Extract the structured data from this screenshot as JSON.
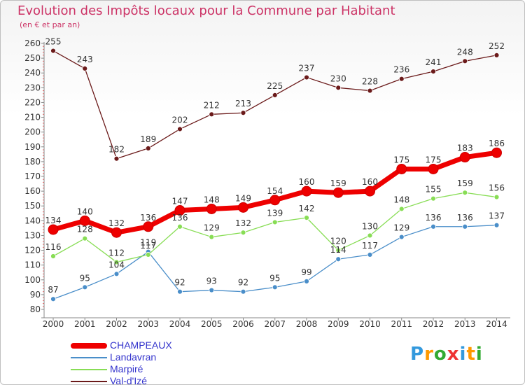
{
  "title": "Evolution des Impôts locaux pour la Commune par Habitant",
  "subtitle": "(en € et par an)",
  "logo": {
    "text": [
      "P",
      "r",
      "o",
      "x",
      "i",
      "t",
      "i"
    ],
    "colors": [
      "#3399dd",
      "#ff9900",
      "#33aa33",
      "#ee3333",
      "#3399dd",
      "#ff9900",
      "#33aa33"
    ]
  },
  "chart_data": {
    "type": "line",
    "title": "Evolution des Impôts locaux pour la Commune par Habitant",
    "subtitle": "(en € et par an)",
    "x": [
      2000,
      2001,
      2002,
      2003,
      2004,
      2005,
      2006,
      2007,
      2008,
      2009,
      2010,
      2011,
      2012,
      2013,
      2014
    ],
    "ylim": [
      80,
      260
    ],
    "yticks": [
      80,
      90,
      100,
      110,
      120,
      130,
      140,
      150,
      160,
      170,
      180,
      190,
      200,
      210,
      220,
      230,
      240,
      250,
      260
    ],
    "grid": false,
    "legend_position": "bottom-left",
    "series": [
      {
        "name": "CHAMPEAUX",
        "color": "#ee0000",
        "values": [
          134,
          140,
          132,
          136,
          147,
          148,
          149,
          154,
          160,
          159,
          160,
          175,
          175,
          183,
          186
        ]
      },
      {
        "name": "Landavran",
        "color": "#4a8ec9",
        "values": [
          87,
          95,
          104,
          119,
          92,
          93,
          92,
          95,
          99,
          114,
          117,
          129,
          136,
          136,
          137
        ]
      },
      {
        "name": "Marpiré",
        "color": "#88dd55",
        "values": [
          116,
          128,
          112,
          117,
          136,
          129,
          132,
          139,
          142,
          120,
          130,
          148,
          155,
          159,
          156
        ]
      },
      {
        "name": "Val-d'Izé",
        "color": "#6b1a1a",
        "values": [
          255,
          243,
          182,
          189,
          202,
          212,
          213,
          225,
          237,
          230,
          228,
          236,
          241,
          248,
          252
        ]
      }
    ]
  }
}
